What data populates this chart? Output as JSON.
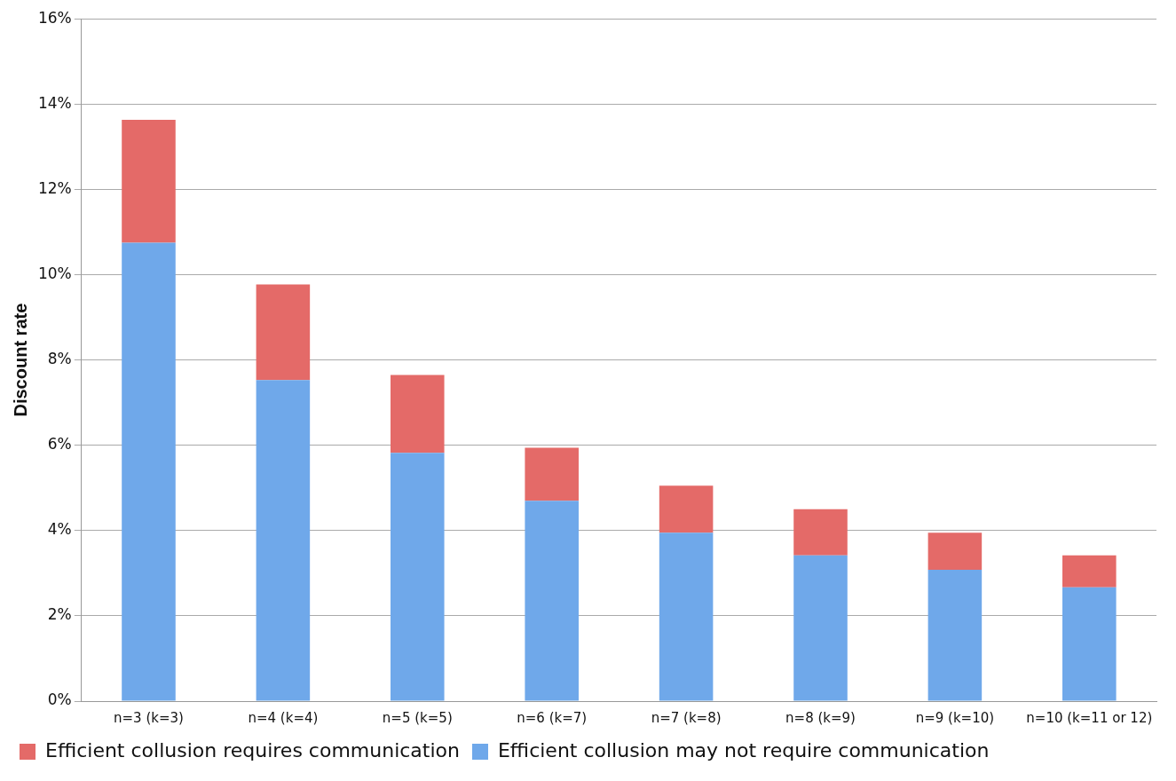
{
  "chart_data": {
    "type": "bar",
    "stacked": true,
    "ylabel": "Discount rate",
    "categories": [
      "n=3 (k=3)",
      "n=4 (k=4)",
      "n=5 (k=5)",
      "n=6 (k=7)",
      "n=7 (k=8)",
      "n=8 (k=9)",
      "n=9 (k=10)",
      "n=10 (k=11 or 12)"
    ],
    "series": [
      {
        "name": "Efficient collusion may not require communication",
        "color": "#6fa8ea",
        "values": [
          10.75,
          7.53,
          5.82,
          4.7,
          3.95,
          3.42,
          3.08,
          2.67
        ]
      },
      {
        "name": "Efficient collusion requires communication",
        "color": "#e46a68",
        "values": [
          2.88,
          2.24,
          1.83,
          1.24,
          1.1,
          1.08,
          0.87,
          0.75
        ]
      }
    ],
    "ylim": [
      0,
      16
    ],
    "yticks": [
      {
        "value": 0,
        "label": "0%"
      },
      {
        "value": 2,
        "label": "2%"
      },
      {
        "value": 4,
        "label": "4%"
      },
      {
        "value": 6,
        "label": "6%"
      },
      {
        "value": 8,
        "label": "8%"
      },
      {
        "value": 10,
        "label": "10%"
      },
      {
        "value": 12,
        "label": "12%"
      },
      {
        "value": 14,
        "label": "14%"
      },
      {
        "value": 16,
        "label": "16%"
      }
    ],
    "grid": "y",
    "legend": "bottom"
  }
}
